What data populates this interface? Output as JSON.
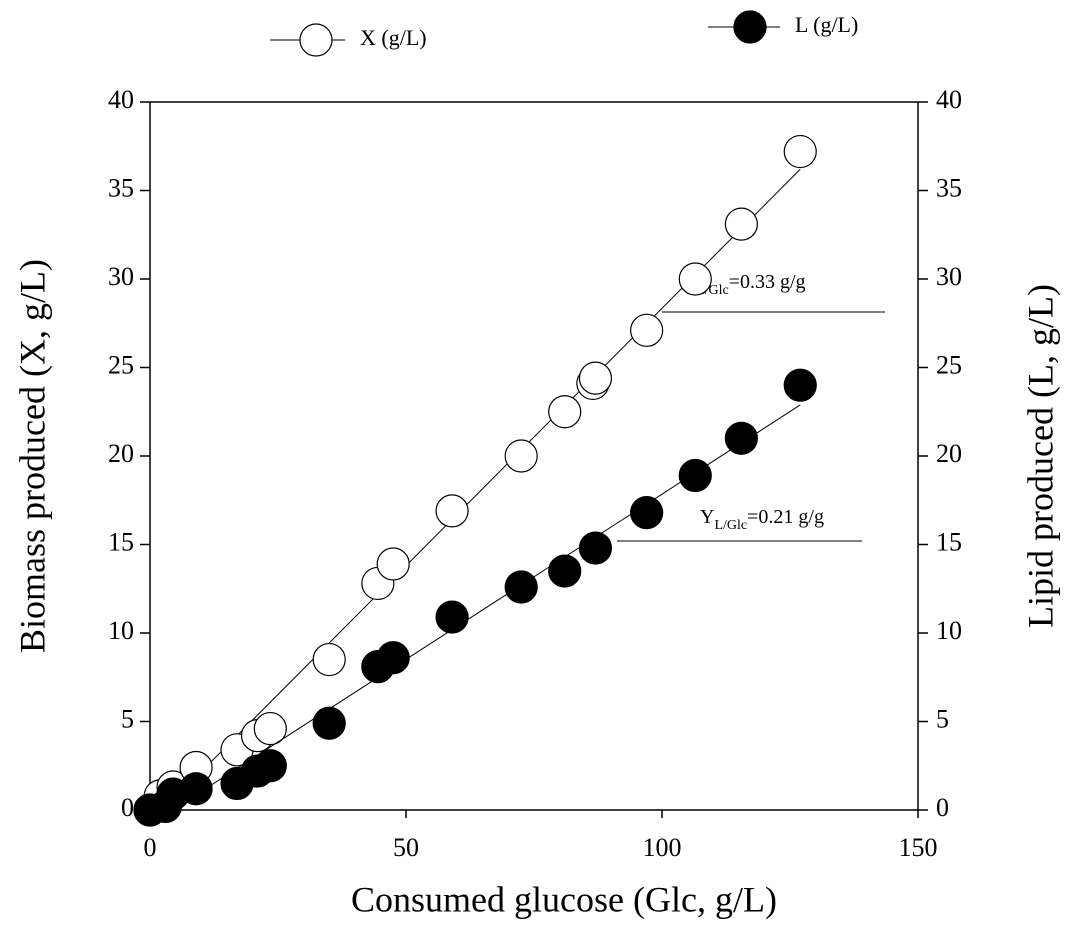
{
  "chart_data": {
    "type": "scatter",
    "xlabel": "Consumed glucose (Glc, g/L)",
    "ylabel": "Biomass produced (X, g/L)",
    "y2label": "Lipid produced (L, g/L)",
    "xlim": [
      0,
      150
    ],
    "xticks": [
      0,
      50,
      100,
      150
    ],
    "ylim": [
      0,
      40
    ],
    "yticks": [
      0,
      5,
      10,
      15,
      20,
      25,
      30,
      35,
      40
    ],
    "y2lim": [
      0,
      40
    ],
    "y2ticks": [
      0,
      5,
      10,
      15,
      20,
      25,
      30,
      35,
      40
    ],
    "series": [
      {
        "name": "X (g/L)",
        "color": "#ffffff",
        "axis": "y",
        "x": [
          0,
          2,
          4.5,
          9,
          17,
          21,
          23.5,
          35,
          44.5,
          47.5,
          59,
          72.5,
          81,
          86.5,
          87,
          97,
          106.5,
          115.5,
          127
        ],
        "values": [
          0,
          0.8,
          1.3,
          2.4,
          3.4,
          4.2,
          4.6,
          8.5,
          12.8,
          13.9,
          16.9,
          20,
          22.5,
          24.1,
          24.4,
          27.1,
          30,
          33.1,
          37.2
        ]
      },
      {
        "name": "L (g/L)",
        "color": "#000000",
        "axis": "y2",
        "x": [
          0,
          3,
          4.5,
          9,
          17,
          21,
          23.5,
          35,
          44.5,
          47.5,
          59,
          72.5,
          81,
          87,
          97,
          106.5,
          115.5,
          127
        ],
        "values": [
          0,
          0.2,
          0.9,
          1.2,
          1.5,
          2.2,
          2.5,
          4.9,
          8.1,
          8.6,
          10.9,
          12.6,
          13.5,
          14.8,
          16.8,
          18.9,
          21,
          24
        ]
      }
    ],
    "annotations": [
      {
        "main": "Y",
        "sub": "X/Glc",
        "rest": "=0.33 g/g"
      },
      {
        "main": "Y",
        "sub": "L/Glc",
        "rest": "=0.21 g/g"
      }
    ]
  }
}
